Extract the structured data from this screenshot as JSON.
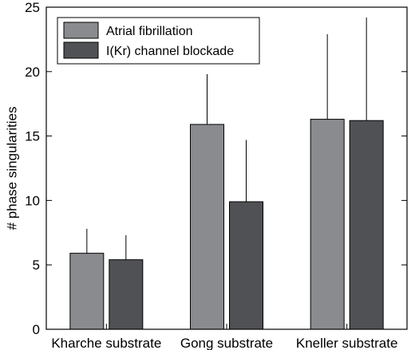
{
  "chart_data": {
    "type": "bar",
    "categories": [
      "Kharche substrate",
      "Gong substrate",
      "Kneller substrate"
    ],
    "series": [
      {
        "name": "Atrial fibrillation",
        "values": [
          5.9,
          15.9,
          16.3
        ],
        "errors": [
          1.9,
          3.9,
          6.6
        ],
        "color": "#898b8e"
      },
      {
        "name": "I(Kr) channel blockade",
        "values": [
          5.4,
          9.9,
          16.2
        ],
        "errors": [
          1.9,
          4.8,
          8.0
        ],
        "color": "#505154"
      }
    ],
    "title": "",
    "xlabel": "",
    "ylabel": "# phase singularities",
    "ylim": [
      0,
      25
    ],
    "yticks": [
      "0",
      "5",
      "10",
      "15",
      "20",
      "25"
    ],
    "grid": false,
    "legend_position": "top-left"
  }
}
